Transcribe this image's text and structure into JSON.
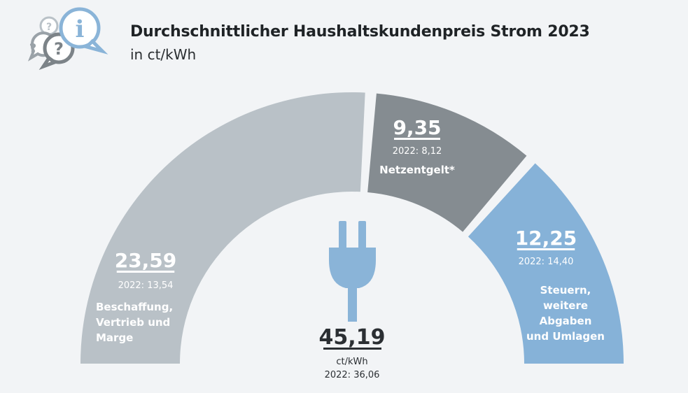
{
  "header": {
    "title": "Durchschnittlicher Haushaltskundenpreis Strom 2023",
    "subtitle": "in ct/kWh",
    "icon": "info-question-bubbles-icon"
  },
  "center": {
    "icon": "power-plug-icon",
    "total": "45,19",
    "unit": "ct/kWh",
    "prev": "2022: 36,06"
  },
  "chart_data": {
    "type": "pie",
    "layout": "semicircle-donut",
    "title": "Durchschnittlicher Haushaltskundenpreis Strom 2023",
    "subtitle": "in ct/kWh",
    "unit": "ct/kWh",
    "total": 45.19,
    "total_2022": 36.06,
    "slices": [
      {
        "value_label": "23,59",
        "value": 23.59,
        "prev_label": "2022: 13,54",
        "prev_value": 13.54,
        "label_lines": [
          "Beschaffung,",
          "Vertrieb und",
          "Marge"
        ],
        "color": "#b9c1c7",
        "text_color": "#ffffff"
      },
      {
        "value_label": "9,35",
        "value": 9.35,
        "prev_label": "2022: 8,12",
        "prev_value": 8.12,
        "label_lines": [
          "Netzentgelt*"
        ],
        "color": "#858c91",
        "text_color": "#ffffff"
      },
      {
        "value_label": "12,25",
        "value": 12.25,
        "prev_label": "2022: 14,40",
        "prev_value": 14.4,
        "label_lines": [
          "Steuern,",
          "weitere",
          "Abgaben",
          "und Umlagen"
        ],
        "color": "#86b2d8",
        "text_color": "#ffffff"
      }
    ],
    "colors": {
      "plug": "#8ab4d8",
      "total_text": "#2b2f33"
    }
  }
}
